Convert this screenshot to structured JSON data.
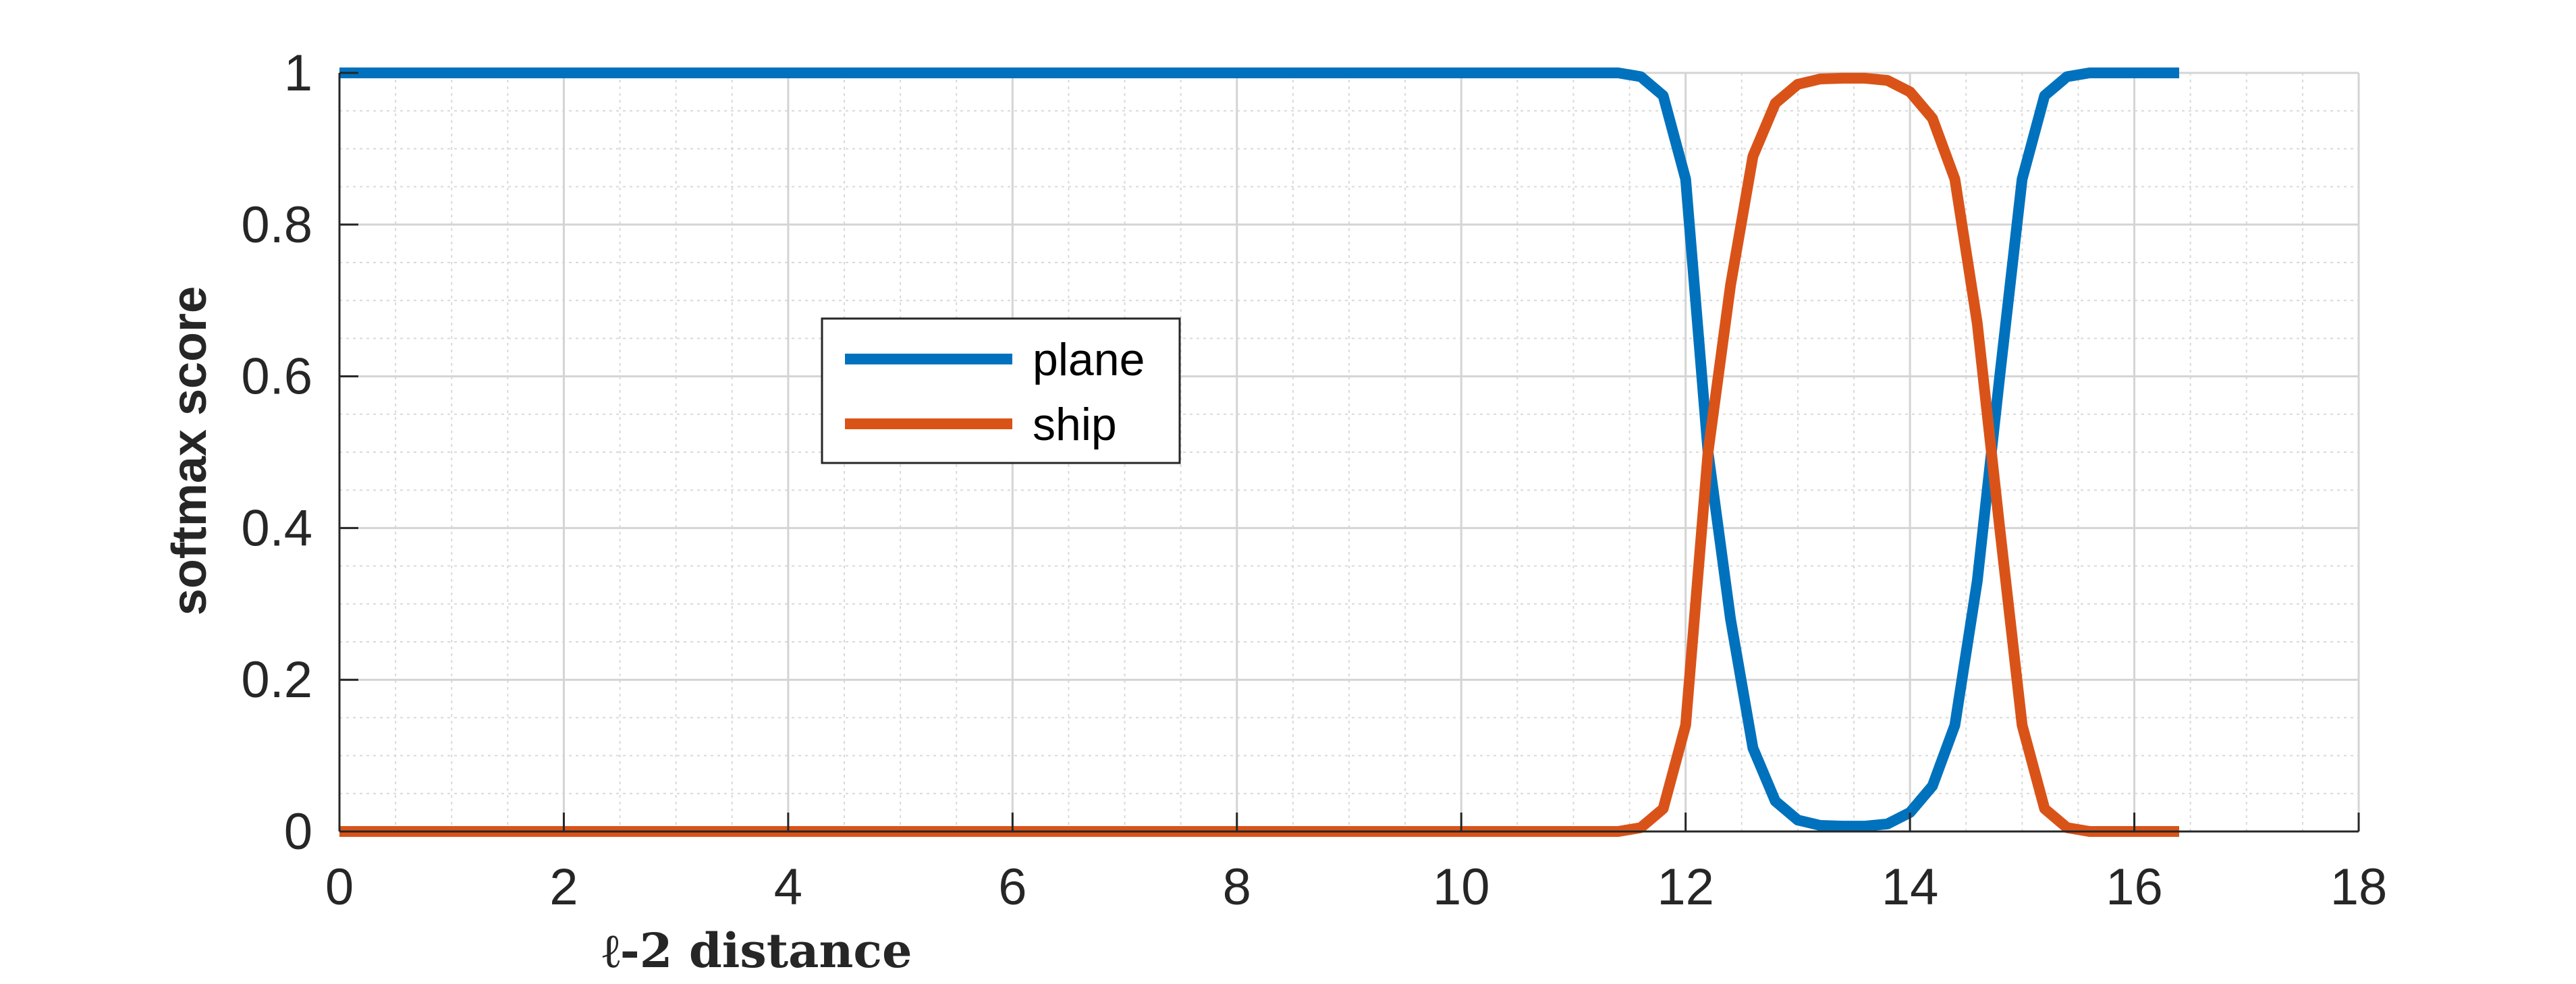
{
  "chart_data": {
    "type": "line",
    "title": "",
    "xlabel": "ℓ-2 distance",
    "ylabel": "softmax score",
    "xlim": [
      0,
      18
    ],
    "ylim": [
      0,
      1
    ],
    "xticks": [
      0,
      2,
      4,
      6,
      8,
      10,
      12,
      14,
      16,
      18
    ],
    "yticks": [
      0,
      0.2,
      0.4,
      0.6,
      0.8,
      1
    ],
    "xtick_labels": [
      "0",
      "2",
      "4",
      "6",
      "8",
      "10",
      "12",
      "14",
      "16",
      "18"
    ],
    "ytick_labels": [
      "0",
      "0.2",
      "0.4",
      "0.6",
      "0.8",
      "1"
    ],
    "grid": "major and minor",
    "legend_position": "upper-left-center",
    "x": [
      0,
      11.4,
      11.6,
      11.8,
      12.0,
      12.2,
      12.4,
      12.6,
      12.8,
      13.0,
      13.2,
      13.4,
      13.6,
      13.8,
      14.0,
      14.2,
      14.4,
      14.6,
      14.8,
      15.0,
      15.2,
      15.4,
      15.6,
      16.4
    ],
    "series": [
      {
        "name": "plane",
        "color": "#0072BD",
        "values": [
          1.0,
          1.0,
          0.995,
          0.97,
          0.86,
          0.5,
          0.28,
          0.11,
          0.04,
          0.015,
          0.008,
          0.007,
          0.007,
          0.01,
          0.025,
          0.06,
          0.14,
          0.33,
          0.6,
          0.86,
          0.97,
          0.995,
          1.0,
          1.0
        ]
      },
      {
        "name": "ship",
        "color": "#D95319",
        "values": [
          0.0,
          0.0,
          0.005,
          0.03,
          0.14,
          0.5,
          0.72,
          0.89,
          0.96,
          0.985,
          0.992,
          0.993,
          0.993,
          0.99,
          0.975,
          0.94,
          0.86,
          0.67,
          0.4,
          0.14,
          0.03,
          0.005,
          0.0,
          0.0
        ]
      }
    ]
  }
}
